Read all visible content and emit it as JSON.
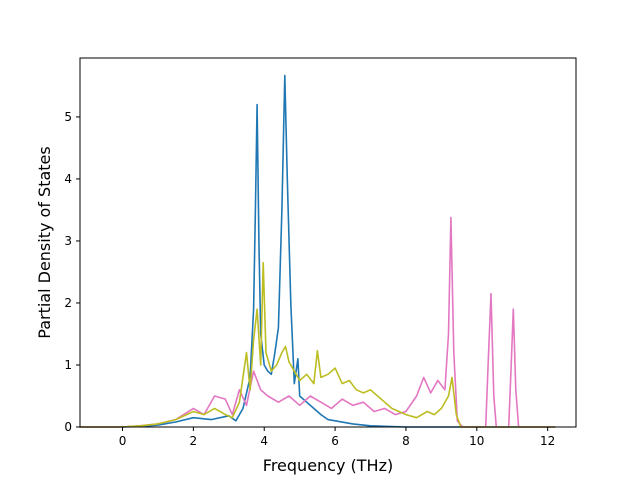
{
  "chart_data": {
    "type": "line",
    "xlabel": "Frequency (THz)",
    "ylabel": "Partial Density of States",
    "xlim": [
      -1.2,
      12.8
    ],
    "ylim": [
      0,
      5.95
    ],
    "xticks": [
      0,
      2,
      4,
      6,
      8,
      10,
      12
    ],
    "yticks": [
      0,
      1,
      2,
      3,
      4,
      5
    ],
    "grid": false,
    "series": [
      {
        "color": "#1f77b4",
        "points": [
          [
            -1.2,
            0
          ],
          [
            0,
            0
          ],
          [
            0.5,
            0.01
          ],
          [
            1,
            0.03
          ],
          [
            1.5,
            0.08
          ],
          [
            2,
            0.15
          ],
          [
            2.5,
            0.12
          ],
          [
            3,
            0.18
          ],
          [
            3.2,
            0.1
          ],
          [
            3.4,
            0.3
          ],
          [
            3.6,
            0.8
          ],
          [
            3.7,
            1.9
          ],
          [
            3.75,
            3.5
          ],
          [
            3.8,
            5.2
          ],
          [
            3.85,
            3.0
          ],
          [
            3.9,
            1.5
          ],
          [
            4.0,
            1.0
          ],
          [
            4.1,
            0.9
          ],
          [
            4.2,
            0.85
          ],
          [
            4.3,
            1.2
          ],
          [
            4.4,
            1.6
          ],
          [
            4.5,
            3.5
          ],
          [
            4.58,
            5.67
          ],
          [
            4.65,
            4.0
          ],
          [
            4.75,
            2.0
          ],
          [
            4.85,
            0.7
          ],
          [
            4.95,
            1.1
          ],
          [
            5.0,
            0.5
          ],
          [
            5.2,
            0.4
          ],
          [
            5.4,
            0.3
          ],
          [
            5.6,
            0.2
          ],
          [
            5.8,
            0.12
          ],
          [
            6.0,
            0.1
          ],
          [
            6.5,
            0.05
          ],
          [
            7.0,
            0.02
          ],
          [
            7.5,
            0.01
          ],
          [
            8.0,
            0
          ],
          [
            12.2,
            0
          ]
        ]
      },
      {
        "color": "#e377c2",
        "points": [
          [
            -1.2,
            0
          ],
          [
            0,
            0
          ],
          [
            0.5,
            0.02
          ],
          [
            1,
            0.05
          ],
          [
            1.5,
            0.12
          ],
          [
            2,
            0.3
          ],
          [
            2.3,
            0.2
          ],
          [
            2.6,
            0.5
          ],
          [
            2.9,
            0.45
          ],
          [
            3.1,
            0.2
          ],
          [
            3.3,
            0.6
          ],
          [
            3.5,
            0.35
          ],
          [
            3.7,
            0.9
          ],
          [
            3.9,
            0.6
          ],
          [
            4.1,
            0.5
          ],
          [
            4.4,
            0.4
          ],
          [
            4.7,
            0.5
          ],
          [
            5.0,
            0.35
          ],
          [
            5.3,
            0.5
          ],
          [
            5.6,
            0.4
          ],
          [
            5.9,
            0.3
          ],
          [
            6.2,
            0.45
          ],
          [
            6.5,
            0.35
          ],
          [
            6.8,
            0.4
          ],
          [
            7.1,
            0.25
          ],
          [
            7.4,
            0.3
          ],
          [
            7.7,
            0.2
          ],
          [
            8.0,
            0.25
          ],
          [
            8.3,
            0.5
          ],
          [
            8.5,
            0.8
          ],
          [
            8.7,
            0.55
          ],
          [
            8.9,
            0.75
          ],
          [
            9.1,
            0.6
          ],
          [
            9.2,
            1.5
          ],
          [
            9.27,
            3.38
          ],
          [
            9.35,
            1.2
          ],
          [
            9.45,
            0.1
          ],
          [
            9.6,
            0
          ],
          [
            10.25,
            0
          ],
          [
            10.32,
            1.0
          ],
          [
            10.4,
            2.15
          ],
          [
            10.48,
            0.5
          ],
          [
            10.55,
            0
          ],
          [
            10.9,
            0
          ],
          [
            10.97,
            1.0
          ],
          [
            11.03,
            1.9
          ],
          [
            11.1,
            0.6
          ],
          [
            11.18,
            0
          ],
          [
            12.2,
            0
          ]
        ]
      },
      {
        "color": "#bcbd22",
        "points": [
          [
            -1.2,
            0
          ],
          [
            0,
            0
          ],
          [
            0.5,
            0.02
          ],
          [
            1,
            0.05
          ],
          [
            1.5,
            0.12
          ],
          [
            2,
            0.25
          ],
          [
            2.3,
            0.2
          ],
          [
            2.6,
            0.3
          ],
          [
            2.9,
            0.2
          ],
          [
            3.1,
            0.15
          ],
          [
            3.3,
            0.4
          ],
          [
            3.5,
            1.2
          ],
          [
            3.6,
            0.6
          ],
          [
            3.7,
            1.4
          ],
          [
            3.8,
            1.9
          ],
          [
            3.9,
            1.0
          ],
          [
            3.97,
            2.65
          ],
          [
            4.05,
            1.2
          ],
          [
            4.2,
            0.9
          ],
          [
            4.35,
            1.0
          ],
          [
            4.5,
            1.2
          ],
          [
            4.6,
            1.3
          ],
          [
            4.7,
            1.05
          ],
          [
            4.85,
            0.9
          ],
          [
            5.0,
            0.75
          ],
          [
            5.2,
            0.85
          ],
          [
            5.4,
            0.7
          ],
          [
            5.5,
            1.23
          ],
          [
            5.6,
            0.8
          ],
          [
            5.8,
            0.85
          ],
          [
            6.0,
            0.95
          ],
          [
            6.2,
            0.7
          ],
          [
            6.4,
            0.75
          ],
          [
            6.6,
            0.6
          ],
          [
            6.8,
            0.55
          ],
          [
            7.0,
            0.6
          ],
          [
            7.2,
            0.5
          ],
          [
            7.4,
            0.4
          ],
          [
            7.6,
            0.3
          ],
          [
            7.8,
            0.25
          ],
          [
            8.0,
            0.2
          ],
          [
            8.3,
            0.15
          ],
          [
            8.6,
            0.25
          ],
          [
            8.8,
            0.2
          ],
          [
            9.0,
            0.3
          ],
          [
            9.2,
            0.5
          ],
          [
            9.3,
            0.8
          ],
          [
            9.42,
            0.2
          ],
          [
            9.55,
            0
          ],
          [
            12.2,
            0
          ]
        ]
      }
    ]
  }
}
